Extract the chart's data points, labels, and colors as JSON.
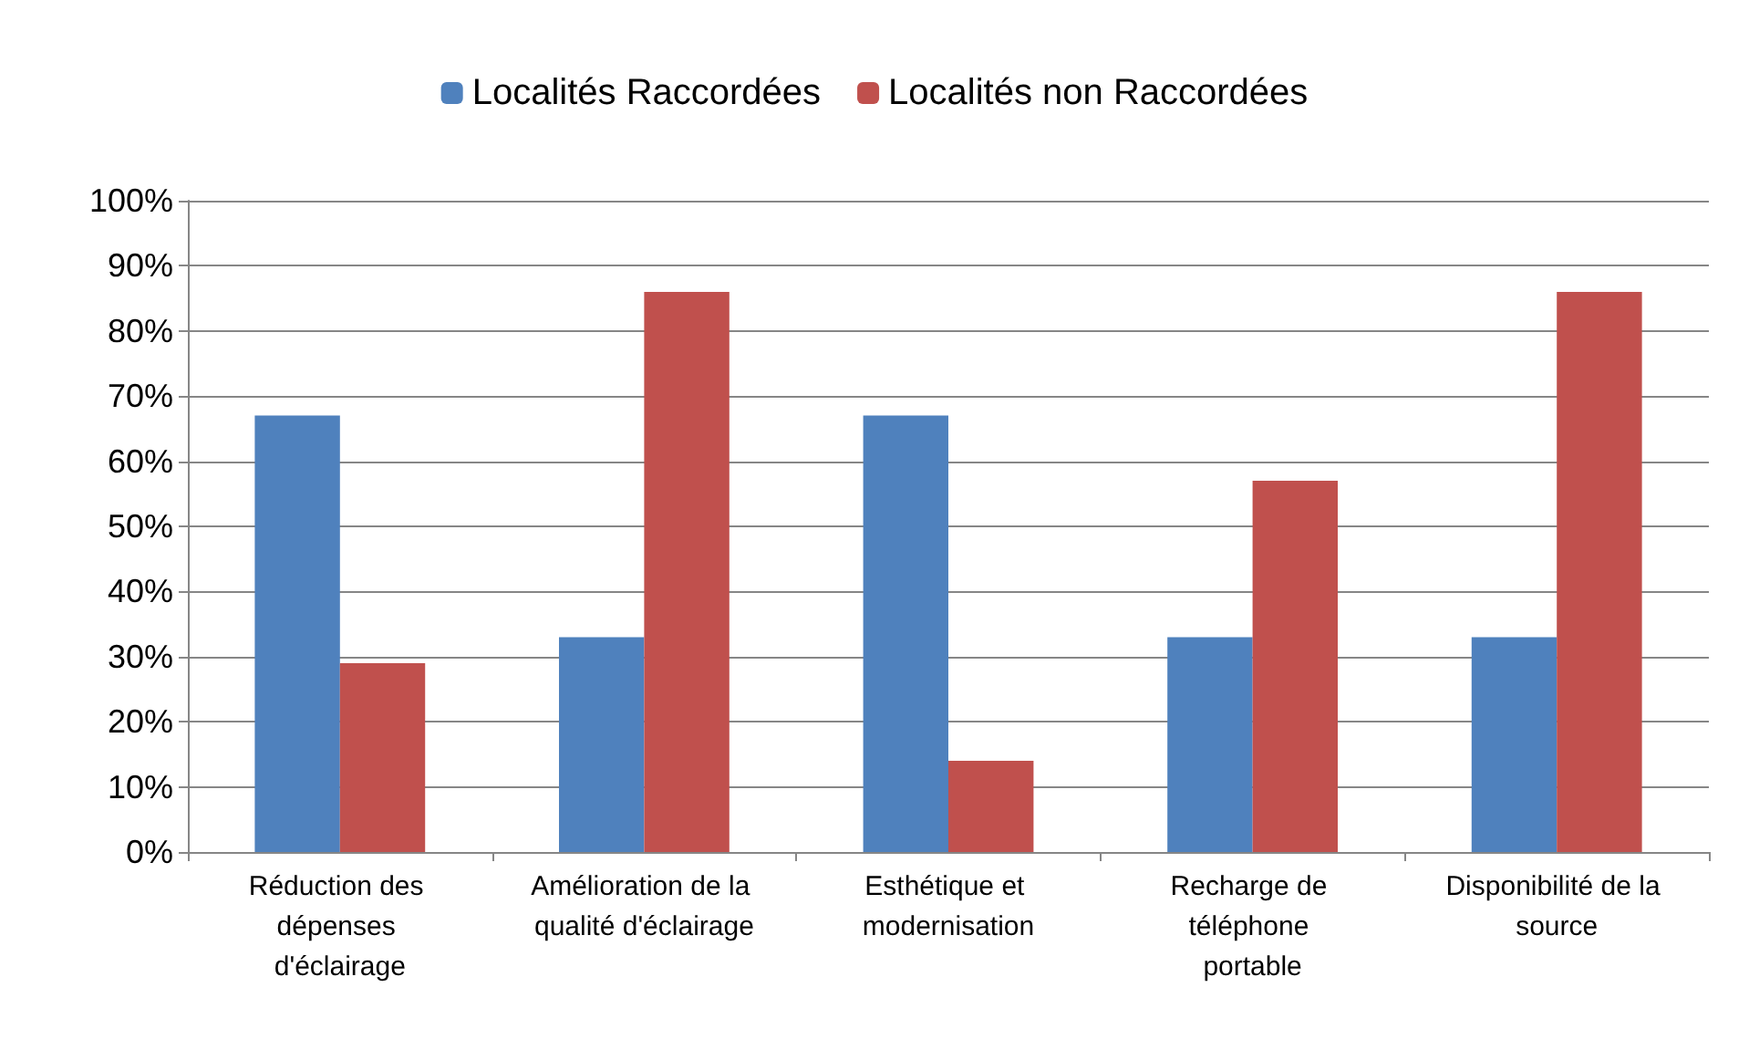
{
  "chart_data": {
    "type": "bar",
    "categories": [
      "Réduction des dépenses d'éclairage",
      "Amélioration de la qualité d'éclairage",
      "Esthétique et modernisation",
      "Recharge de téléphone portable",
      "Disponibilité de la source"
    ],
    "series": [
      {
        "name": "Localités Raccordées",
        "color": "#4f81bd",
        "values": [
          67,
          33,
          67,
          33,
          33
        ]
      },
      {
        "name": "Localités non Raccordées",
        "color": "#c0504d",
        "values": [
          29,
          86,
          14,
          57,
          86
        ]
      }
    ],
    "ylim": [
      0,
      100
    ],
    "yticks": [
      {
        "value": 0,
        "label": "0%"
      },
      {
        "value": 10,
        "label": "10%"
      },
      {
        "value": 20,
        "label": "20%"
      },
      {
        "value": 30,
        "label": "30%"
      },
      {
        "value": 40,
        "label": "40%"
      },
      {
        "value": 50,
        "label": "50%"
      },
      {
        "value": 60,
        "label": "60%"
      },
      {
        "value": 70,
        "label": "70%"
      },
      {
        "value": 80,
        "label": "80%"
      },
      {
        "value": 90,
        "label": "90%"
      },
      {
        "value": 100,
        "label": "100%"
      }
    ],
    "grid": "y",
    "legend": "top"
  }
}
